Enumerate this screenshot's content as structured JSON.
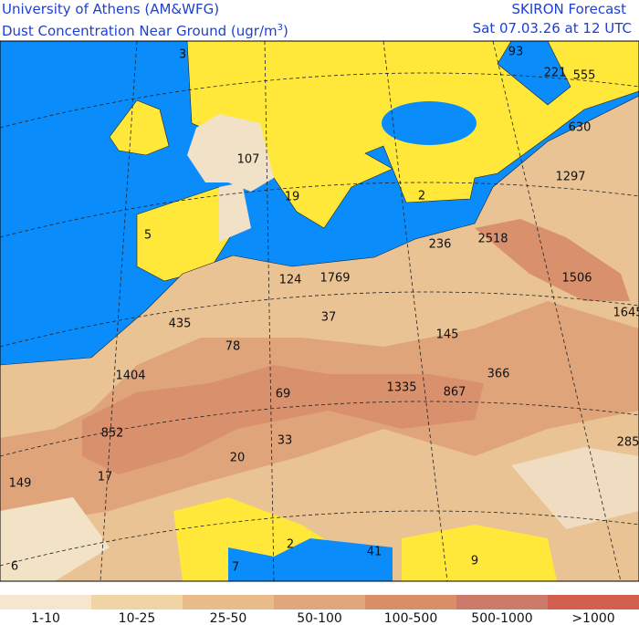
{
  "header": {
    "institution": "University of Athens (AM&WFG)",
    "product": "Dust Concentration Near Ground (ugr/m",
    "unit_exponent": "3",
    "product_close": ")",
    "forecast": "SKIRON Forecast",
    "valid_time": "Sat 07.03.26 at 12 UTC"
  },
  "legend": [
    {
      "label": "1-10",
      "color": "#f4e6cf"
    },
    {
      "label": "10-25",
      "color": "#efd5a3"
    },
    {
      "label": "25-50",
      "color": "#e8bd8a"
    },
    {
      "label": "50-100",
      "color": "#e0a67c"
    },
    {
      "label": "100-500",
      "color": "#d98e68"
    },
    {
      "label": "500-1000",
      "color": "#cc7b6b"
    },
    {
      "label": ">1000",
      "color": "#d3604e"
    }
  ],
  "map_labels": [
    "3",
    "93",
    "221",
    "555",
    "630",
    "107",
    "1297",
    "19",
    "2",
    "5",
    "236",
    "2518",
    "124",
    "1769",
    "1506",
    "1645",
    "435",
    "37",
    "145",
    "78",
    "366",
    "1404",
    "1335",
    "867",
    "69",
    "852",
    "33",
    "285",
    "20",
    "17",
    "149",
    "2",
    "41",
    "9",
    "6",
    "7"
  ]
}
